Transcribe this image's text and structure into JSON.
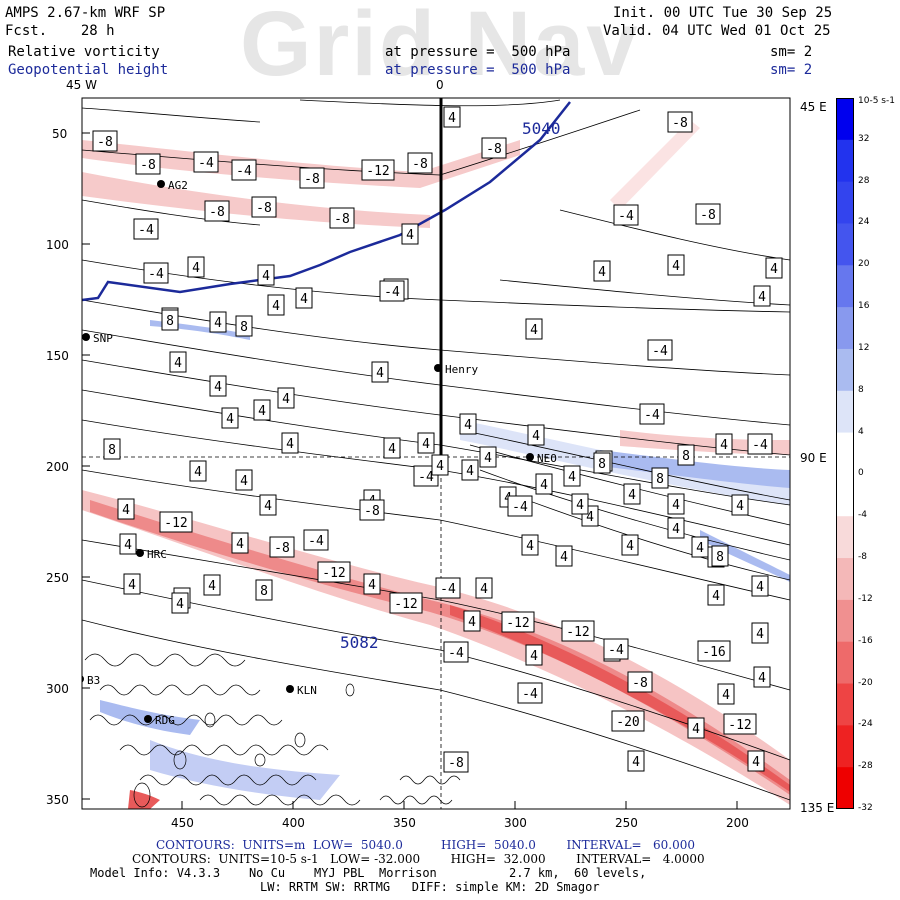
{
  "header": {
    "model_line": "AMPS 2.67-km WRF SP",
    "fcst_line": "Fcst.    28 h",
    "field1_name": "Relative vorticity",
    "field2_name": "Geopotential height",
    "level1": "at pressure =  500 hPa",
    "level2": "at pressure =  500 hPa",
    "sm1": "sm= 2",
    "sm2": "sm= 2",
    "init": "Init. 00 UTC Tue 30 Sep 25",
    "valid": "Valid. 04 UTC Wed 01 Oct 25",
    "watermark": "Grid Nav"
  },
  "map": {
    "lon_labels": [
      "45 W",
      "0",
      "45 E",
      "90 E",
      "135 E"
    ],
    "y_ticks": [
      "50",
      "100",
      "150",
      "200",
      "250",
      "300",
      "350"
    ],
    "x_ticks": [
      "450",
      "400",
      "350",
      "300",
      "250",
      "200"
    ],
    "height_labels": [
      "5040",
      "5082"
    ],
    "stations": [
      "AG2",
      "SNP",
      "Henry",
      "NEO",
      "HRC",
      "KLN",
      "RDG",
      "B3"
    ],
    "contour_labels": [
      "-8",
      "-8",
      "-4",
      "-4",
      "-8",
      "-12",
      "-8",
      "-8",
      "-8",
      "-8",
      "-8",
      "-4",
      "4",
      "-4",
      "4",
      "4",
      "4",
      "-4",
      "4",
      "4",
      "8",
      "4",
      "4",
      "4",
      "4",
      "4",
      "4",
      "4",
      "4",
      "4",
      "4",
      "8",
      "4",
      "4",
      "4",
      "-4",
      "4",
      "4",
      "4",
      "8",
      "-4",
      "-4",
      "4",
      "-4",
      "-8",
      "-4",
      "-8",
      "4",
      "4",
      "4",
      "4",
      "4",
      "-4",
      "4",
      "4",
      "4",
      "4",
      "-12",
      "-8",
      "4",
      "-8",
      "-4",
      "4",
      "4",
      "4",
      "4",
      "-12",
      "4",
      "4",
      "4",
      "-12",
      "-4",
      "4",
      "4",
      "-12",
      "-12",
      "-4",
      "4",
      "4",
      "-4",
      "-8",
      "-16",
      "4",
      "4",
      "-4",
      "4",
      "-12",
      "-20",
      "-8",
      "4",
      "4",
      "4",
      "4",
      "4",
      "8",
      "8",
      "8",
      "4",
      "4",
      "4",
      "4",
      "4",
      "4",
      "4",
      "4",
      "4",
      "4",
      "4",
      "4",
      "8",
      "8",
      "4",
      "4",
      "4",
      "-4"
    ]
  },
  "colorbar": {
    "units": "10-5 s-1",
    "labels": [
      "32",
      "28",
      "24",
      "20",
      "16",
      "12",
      "8",
      "4",
      "0",
      "-4",
      "-8",
      "-12",
      "-16",
      "-20",
      "-24",
      "-28",
      "-32"
    ],
    "colors": [
      "#0000ee",
      "#2233ee",
      "#3344ee",
      "#4455ee",
      "#6677ee",
      "#8899ee",
      "#aabbf0",
      "#dde4f8",
      "#ffffff",
      "#ffffff",
      "#f8dada",
      "#f4b8b8",
      "#f09090",
      "#ee6a6a",
      "#ee4444",
      "#ee2222",
      "#ee0000"
    ]
  },
  "footer": {
    "line1": "CONTOURS:  UNITS=m  LOW=  5040.0          HIGH=  5040.0        INTERVAL=   60.000",
    "line2": "CONTOURS:  UNITS=10-5 s-1   LOW= -32.000        HIGH=  32.000        INTERVAL=   4.0000",
    "line3": "Model Info: V4.3.3    No Cu    MYJ PBL  Morrison          2.7 km,  60 levels,",
    "line4": "LW: RRTM SW: RRTMG   DIFF: simple KM: 2D Smagor"
  }
}
